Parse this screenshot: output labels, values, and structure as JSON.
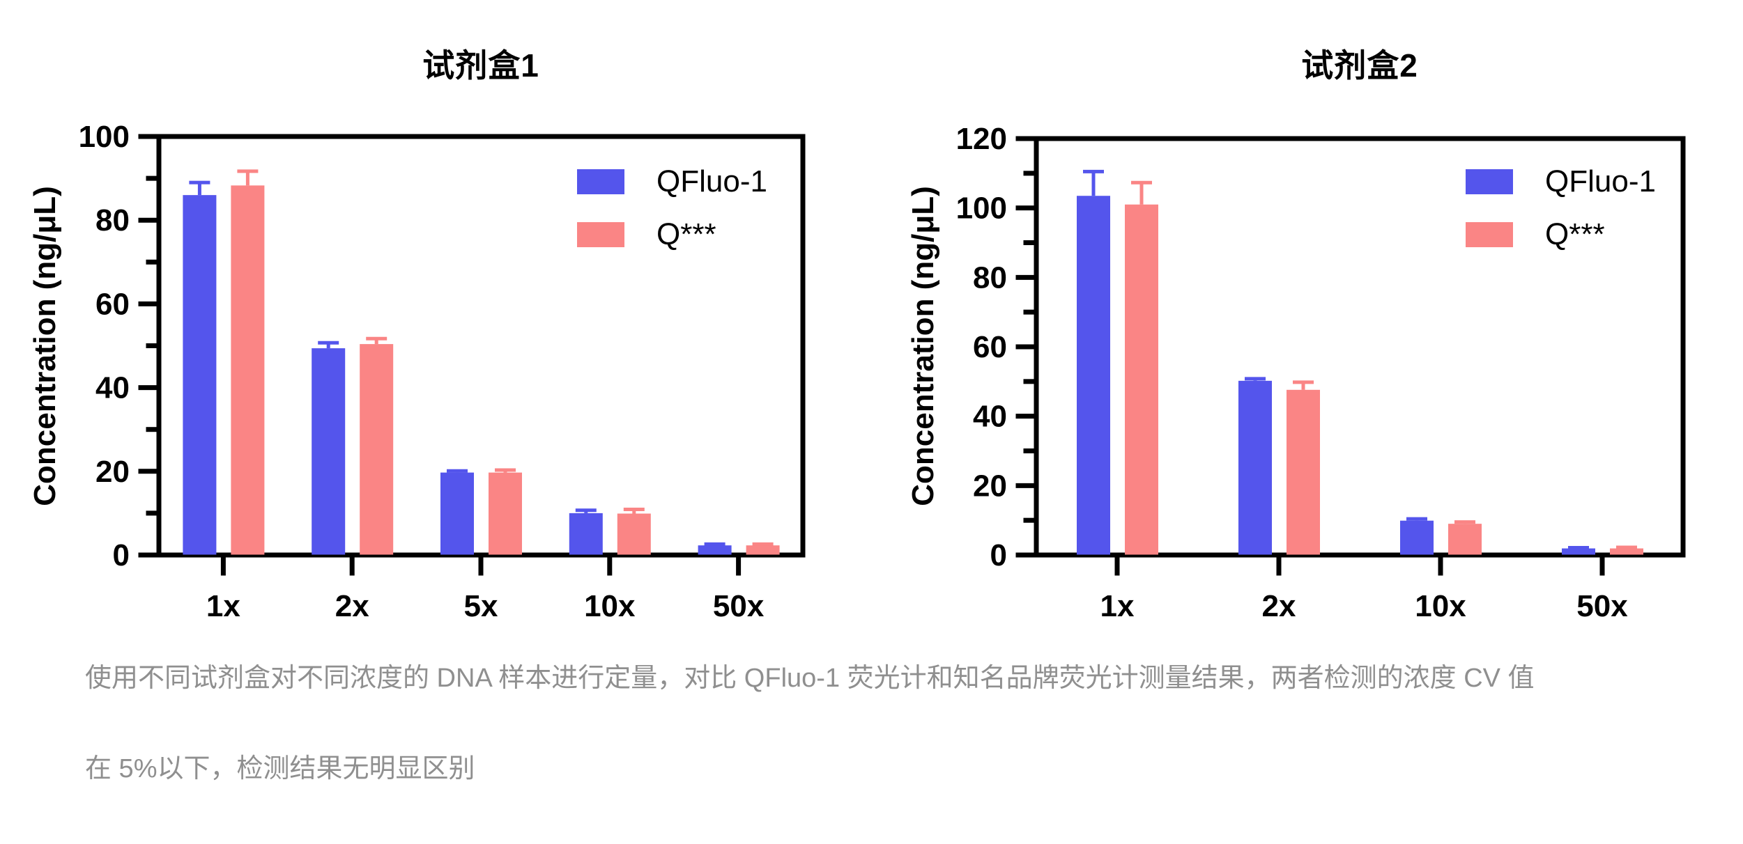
{
  "page": {
    "background": "#ffffff",
    "axis_color": "#000000",
    "caption_color": "#8f8f8f"
  },
  "legend": {
    "series1_label": "QFluo-1",
    "series2_label": "Q***"
  },
  "caption": {
    "line1": "使用不同试剂盒对不同浓度的 DNA 样本进行定量，对比 QFluo-1 荧光计和知名品牌荧光计测量结果，两者检测的浓度 CV 值",
    "line2": "在 5%以下，检测结果无明显区别"
  },
  "chart_data": [
    {
      "type": "bar",
      "title": "试剂盒1",
      "xlabel": "",
      "ylabel": "Concentration (ng/μL)",
      "ylim": [
        0,
        100
      ],
      "ytick_major_step": 20,
      "ytick_minor_step": 10,
      "grid": false,
      "legend_position": "top-right-inside",
      "categories": [
        "1x",
        "2x",
        "5x",
        "10x",
        "50x"
      ],
      "series": [
        {
          "name": "QFluo-1",
          "color": "#5455EC",
          "values": [
            86,
            49.4,
            19.7,
            10.0,
            2.3
          ],
          "errors": [
            3.0,
            1.3,
            0.4,
            0.7,
            0.3
          ]
        },
        {
          "name": "Q***",
          "color": "#FA8585",
          "values": [
            88.3,
            50.4,
            19.7,
            9.9,
            2.3
          ],
          "errors": [
            3.4,
            1.3,
            0.6,
            1.0,
            0.3
          ]
        }
      ]
    },
    {
      "type": "bar",
      "title": "试剂盒2",
      "xlabel": "",
      "ylabel": "Concentration (ng/μL)",
      "ylim": [
        0,
        120
      ],
      "ytick_major_step": 20,
      "ytick_minor_step": 10,
      "grid": false,
      "legend_position": "top-right-inside",
      "categories": [
        "1x",
        "2x",
        "10x",
        "50x"
      ],
      "series": [
        {
          "name": "QFluo-1",
          "color": "#5455EC",
          "values": [
            103.5,
            50.2,
            9.9,
            1.9
          ],
          "errors": [
            7.0,
            0.6,
            0.5,
            0.2
          ]
        },
        {
          "name": "Q***",
          "color": "#FA8585",
          "values": [
            101.0,
            47.6,
            9.0,
            1.9
          ],
          "errors": [
            6.3,
            2.2,
            0.5,
            0.3
          ]
        }
      ]
    }
  ]
}
